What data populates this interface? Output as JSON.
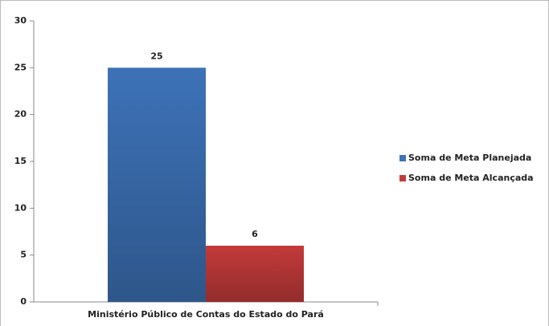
{
  "chart_data": {
    "type": "bar",
    "categories": [
      "Ministério Público de Contas do Estado do Pará"
    ],
    "series": [
      {
        "name": "Soma de Meta Planejada",
        "color": "#3d72b8",
        "values": [
          25
        ]
      },
      {
        "name": "Soma de Meta Alcançada",
        "color": "#c43a3a",
        "values": [
          6
        ]
      }
    ],
    "ylim": [
      0,
      30
    ],
    "yticks": [
      0,
      5,
      10,
      15,
      20,
      25,
      30
    ],
    "grid": false,
    "legend": "right"
  }
}
